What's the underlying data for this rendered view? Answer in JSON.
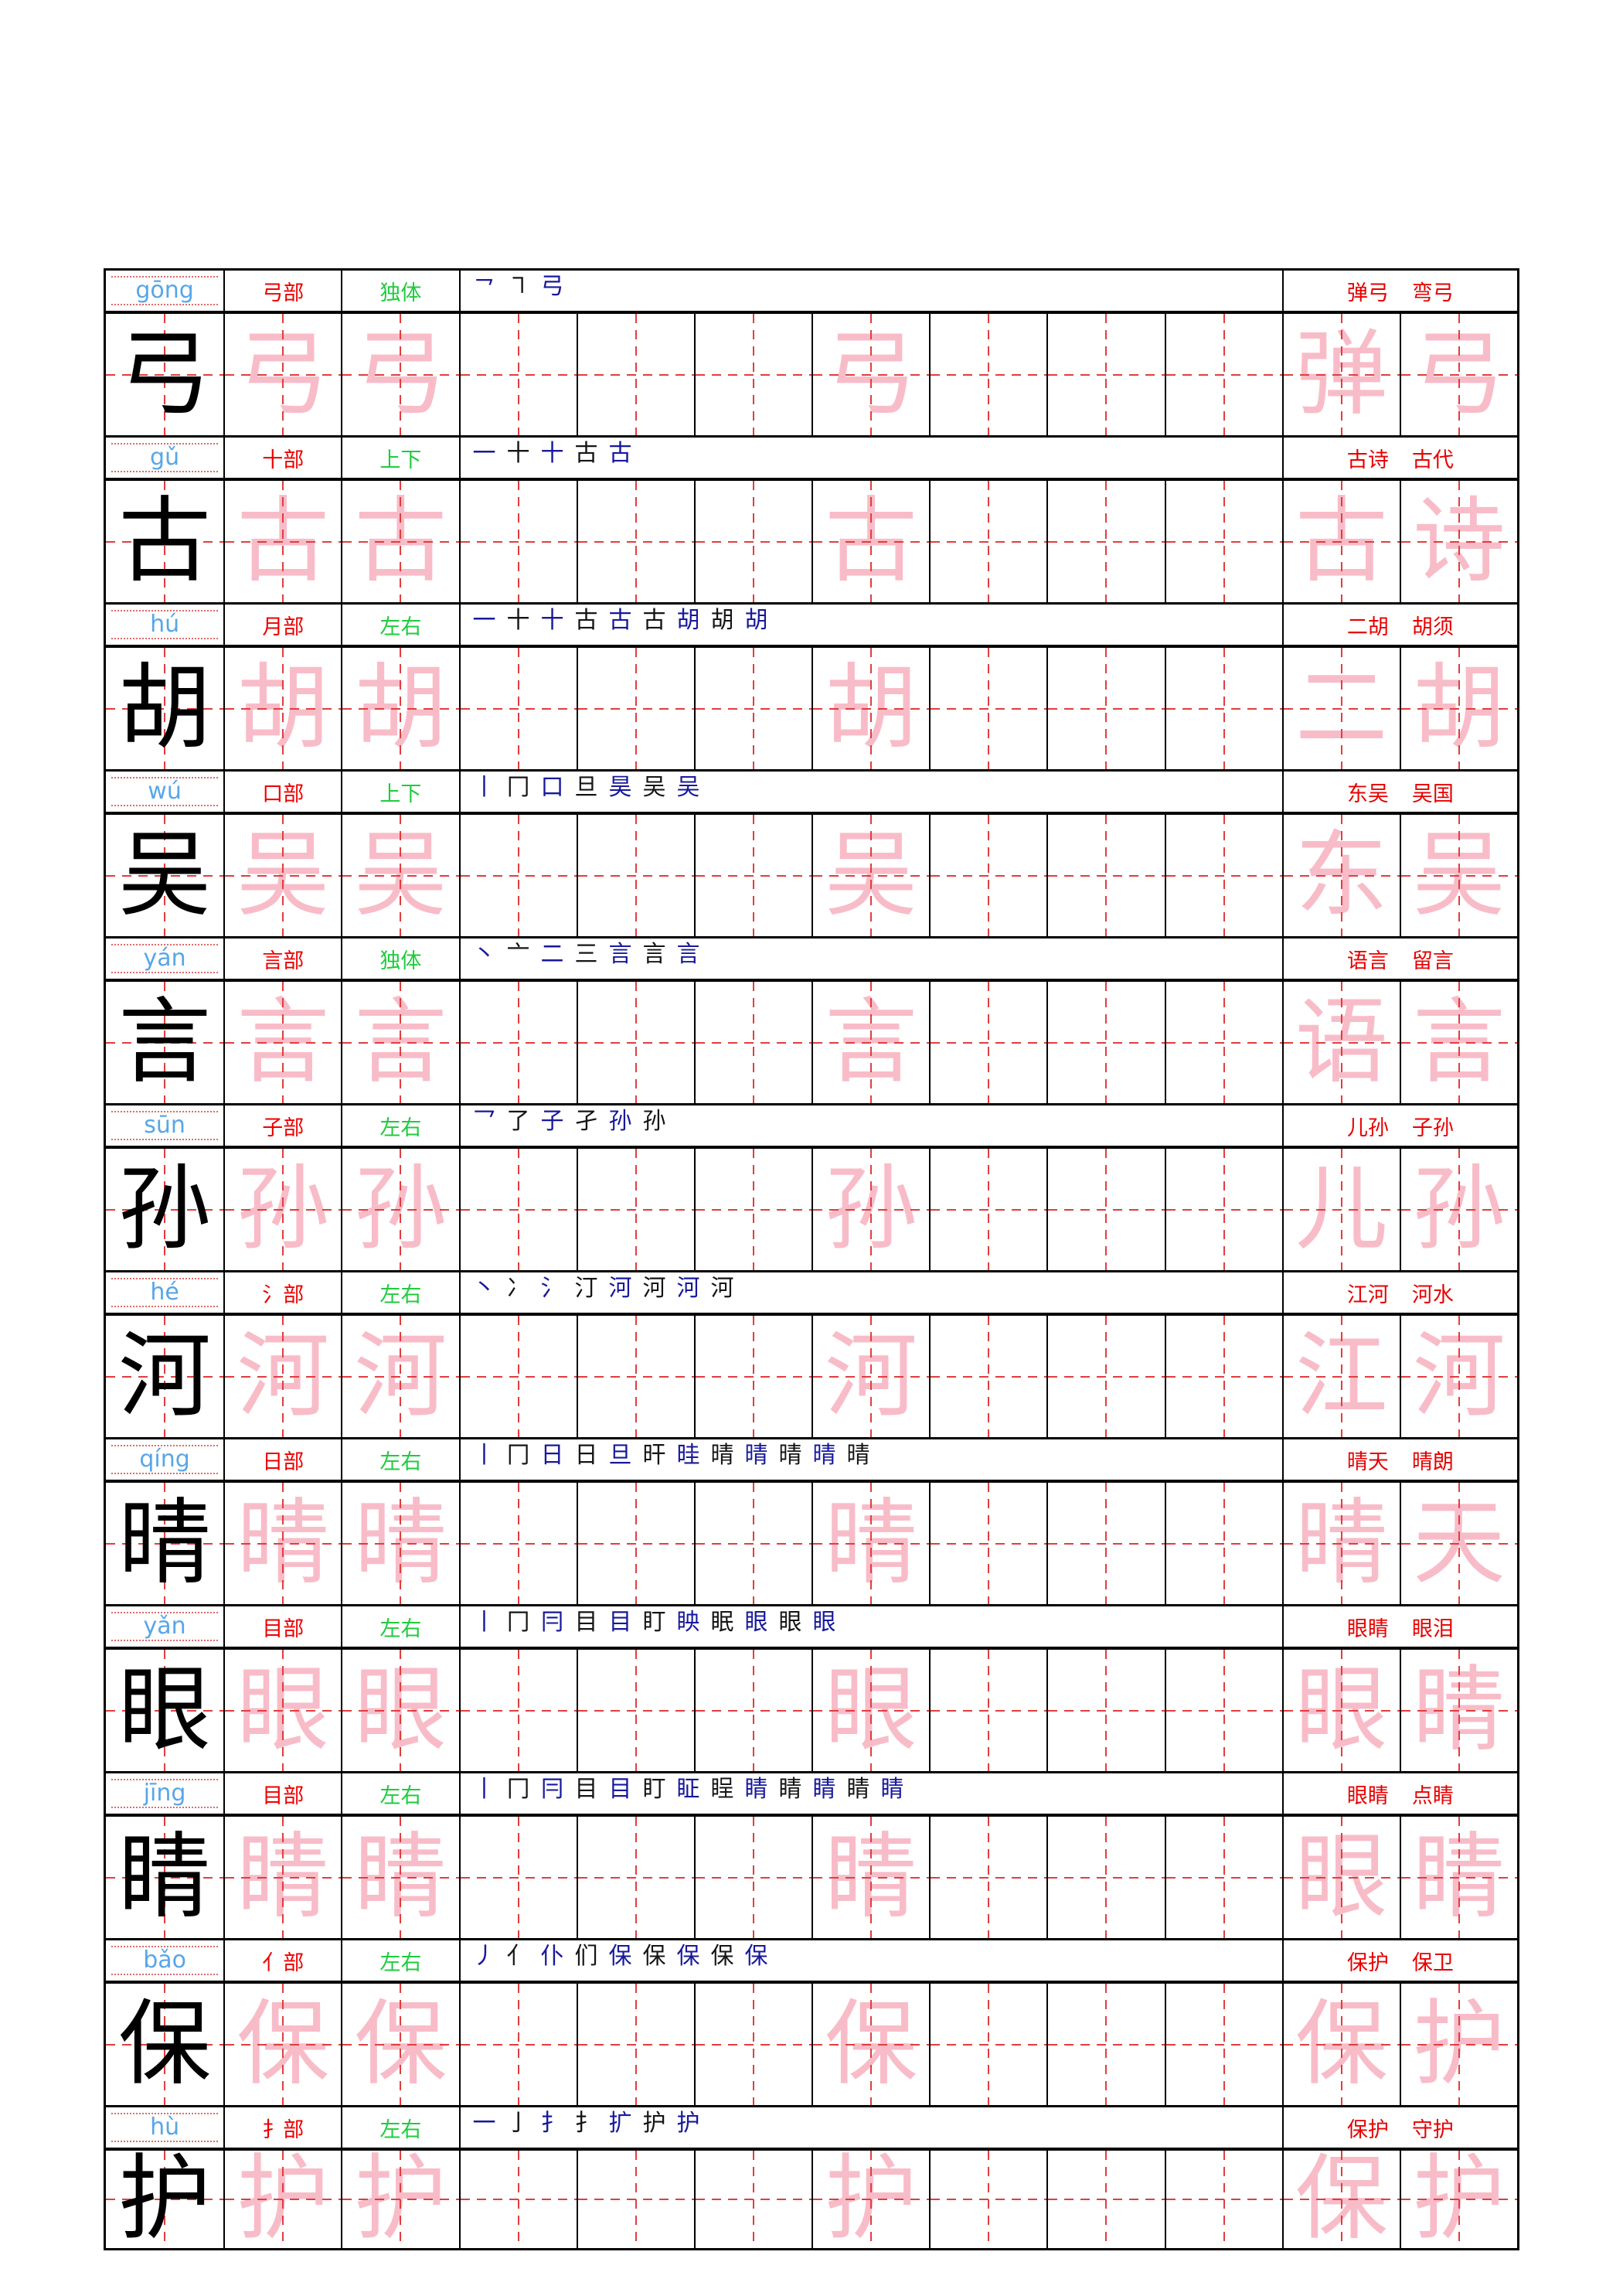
{
  "page_type": "chinese-character-writing-practice-sheet",
  "colors": {
    "pinyin_blue": "#58a6e8",
    "radical_red": "#ee0000",
    "structure_green": "#1ecc3c",
    "stroke_blue": "#18189d",
    "stroke_black": "#151515",
    "word_red": "#e80000",
    "trace_pink": "#f8bcc8",
    "guide_dash_red": "#e23d3d",
    "grid_border": "#000000",
    "background": "#ffffff"
  },
  "grid": {
    "columns_per_row": 12,
    "header_columns": [
      "pinyin",
      "radical",
      "structure",
      "stroke_order",
      "example_words"
    ],
    "cell_style": "tian-zi-ge dashed cross guides"
  },
  "practice_pattern": [
    "main",
    "trace",
    "trace",
    "empty",
    "empty",
    "empty",
    "mid",
    "empty",
    "empty",
    "empty",
    "w0",
    "w1"
  ],
  "rows": [
    {
      "character": "弓",
      "pinyin": "gōng",
      "radical": "弓部",
      "structure": "独体",
      "stroke_order": [
        "㇖",
        "㇕",
        "弓"
      ],
      "words": [
        "弹弓",
        "弯弓"
      ],
      "word_characters": [
        "弹",
        "弓"
      ]
    },
    {
      "character": "古",
      "pinyin": "gǔ",
      "radical": "十部",
      "structure": "上下",
      "stroke_order": [
        "一",
        "十",
        "十",
        "古",
        "古"
      ],
      "words": [
        "古诗",
        "古代"
      ],
      "word_characters": [
        "古",
        "诗"
      ]
    },
    {
      "character": "胡",
      "pinyin": "hú",
      "radical": "月部",
      "structure": "左右",
      "stroke_order": [
        "一",
        "十",
        "十",
        "古",
        "古",
        "古",
        "胡",
        "胡",
        "胡"
      ],
      "words": [
        "二胡",
        "胡须"
      ],
      "word_characters": [
        "二",
        "胡"
      ]
    },
    {
      "character": "吴",
      "pinyin": "wú",
      "radical": "口部",
      "structure": "上下",
      "stroke_order": [
        "丨",
        "冂",
        "口",
        "旦",
        "昊",
        "吴",
        "吴"
      ],
      "words": [
        "东吴",
        "吴国"
      ],
      "word_characters": [
        "东",
        "吴"
      ]
    },
    {
      "character": "言",
      "pinyin": "yán",
      "radical": "言部",
      "structure": "独体",
      "stroke_order": [
        "丶",
        "亠",
        "二",
        "三",
        "言",
        "言",
        "言"
      ],
      "words": [
        "语言",
        "留言"
      ],
      "word_characters": [
        "语",
        "言"
      ]
    },
    {
      "character": "孙",
      "pinyin": "sūn",
      "radical": "子部",
      "structure": "左右",
      "stroke_order": [
        "乛",
        "了",
        "子",
        "孑",
        "孙",
        "孙"
      ],
      "words": [
        "儿孙",
        "子孙"
      ],
      "word_characters": [
        "儿",
        "孙"
      ]
    },
    {
      "character": "河",
      "pinyin": "hé",
      "radical": "氵部",
      "structure": "左右",
      "stroke_order": [
        "丶",
        "冫",
        "氵",
        "汀",
        "河",
        "河",
        "河",
        "河"
      ],
      "words": [
        "江河",
        "河水"
      ],
      "word_characters": [
        "江",
        "河"
      ]
    },
    {
      "character": "晴",
      "pinyin": "qíng",
      "radical": "日部",
      "structure": "左右",
      "stroke_order": [
        "丨",
        "冂",
        "日",
        "日",
        "旦",
        "旰",
        "晆",
        "晴",
        "晴",
        "晴",
        "晴",
        "晴"
      ],
      "words": [
        "晴天",
        "晴朗"
      ],
      "word_characters": [
        "晴",
        "天"
      ]
    },
    {
      "character": "眼",
      "pinyin": "yǎn",
      "radical": "目部",
      "structure": "左右",
      "stroke_order": [
        "丨",
        "冂",
        "冃",
        "目",
        "目",
        "盯",
        "眏",
        "眠",
        "眼",
        "眼",
        "眼"
      ],
      "words": [
        "眼睛",
        "眼泪"
      ],
      "word_characters": [
        "眼",
        "睛"
      ]
    },
    {
      "character": "睛",
      "pinyin": "jīng",
      "radical": "目部",
      "structure": "左右",
      "stroke_order": [
        "丨",
        "冂",
        "冃",
        "目",
        "目",
        "盯",
        "眐",
        "睈",
        "睛",
        "睛",
        "睛",
        "睛",
        "睛"
      ],
      "words": [
        "眼睛",
        "点睛"
      ],
      "word_characters": [
        "眼",
        "睛"
      ]
    },
    {
      "character": "保",
      "pinyin": "bǎo",
      "radical": "亻部",
      "structure": "左右",
      "stroke_order": [
        "丿",
        "亻",
        "仆",
        "们",
        "保",
        "保",
        "保",
        "保",
        "保"
      ],
      "words": [
        "保护",
        "保卫"
      ],
      "word_characters": [
        "保",
        "护"
      ]
    },
    {
      "character": "护",
      "pinyin": "hù",
      "radical": "扌部",
      "structure": "左右",
      "stroke_order": [
        "一",
        "亅",
        "扌",
        "扌",
        "扩",
        "护",
        "护"
      ],
      "words": [
        "保护",
        "守护"
      ],
      "word_characters": [
        "保",
        "护"
      ]
    }
  ]
}
